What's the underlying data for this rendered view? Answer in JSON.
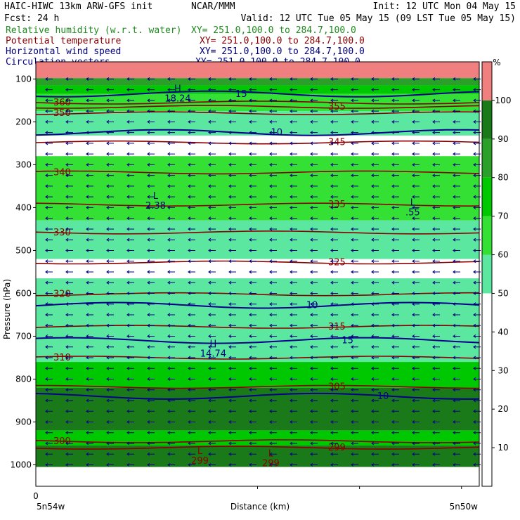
{
  "header": {
    "title_left": "HAIC-HIWC 13km ARW-GFS init",
    "title_mid": "NCAR/MMM",
    "init": "Init: 12 UTC Mon 04 May 15",
    "fcst": "Fcst:   24 h",
    "valid": "Valid: 12 UTC Tue 05 May 15 (09 LST Tue 05 May 15)"
  },
  "fields": [
    {
      "name": "Relative humidity (w.r.t. water)",
      "xy": "XY= 251.0,100.0 to 284.7,100.0",
      "color": "#1f8a1f"
    },
    {
      "name": "Potential temperature",
      "xy": "XY= 251.0,100.0 to 284.7,100.0",
      "color": "#8b0000"
    },
    {
      "name": "Horizontal wind speed",
      "xy": "XY= 251.0,100.0 to 284.7,100.0",
      "color": "#000080"
    },
    {
      "name": "Circulation vectors",
      "xy": "XY= 251.0,100.0 to 284.7,100.0",
      "color": "#000080"
    }
  ],
  "colors": {
    "rh_fill": [
      "#ffffff",
      "#ffffff",
      "#ffffff",
      "#ffffff",
      "#ffffff",
      "#5ce7a0",
      "#33e033",
      "#00c800",
      "#2aa02a",
      "#1a7a1a",
      "#f08080"
    ],
    "theta": "#8b0000",
    "wind": "#00008b",
    "vectors": "#000080"
  },
  "chart_data": {
    "type": "heatmap",
    "xlabel": "Distance (km)",
    "ylabel": "Pressure (hPa)",
    "x_start_label": "0",
    "x_left_label": "5n54w",
    "x_right_label": "5n50w",
    "ylim": [
      1050,
      60
    ],
    "yticks": [
      100,
      200,
      300,
      400,
      500,
      600,
      700,
      800,
      900,
      1000
    ],
    "colorbar": {
      "unit": "%",
      "ticks": [
        10,
        20,
        30,
        40,
        50,
        60,
        70,
        80,
        90,
        100
      ]
    },
    "rh_bands": [
      {
        "p_top": 60,
        "p_bot": 98,
        "rh": 100
      },
      {
        "p_top": 98,
        "p_bot": 115,
        "rh": 85
      },
      {
        "p_top": 115,
        "p_bot": 135,
        "rh": 75
      },
      {
        "p_top": 135,
        "p_bot": 175,
        "rh": 65
      },
      {
        "p_top": 175,
        "p_bot": 232,
        "rh": 55
      },
      {
        "p_top": 232,
        "p_bot": 280,
        "rh": 30
      },
      {
        "p_top": 280,
        "p_bot": 430,
        "rh": 65
      },
      {
        "p_top": 430,
        "p_bot": 520,
        "rh": 55
      },
      {
        "p_top": 520,
        "p_bot": 565,
        "rh": 30
      },
      {
        "p_top": 565,
        "p_bot": 760,
        "rh": 55
      },
      {
        "p_top": 760,
        "p_bot": 820,
        "rh": 75
      },
      {
        "p_top": 820,
        "p_bot": 920,
        "rh": 95
      },
      {
        "p_top": 920,
        "p_bot": 955,
        "rh": 75
      },
      {
        "p_top": 955,
        "p_bot": 1005,
        "rh": 95
      },
      {
        "p_top": 1005,
        "p_bot": 1050,
        "rh": 0
      }
    ],
    "theta_contours": [
      {
        "value": 360,
        "p": 155
      },
      {
        "value": 355,
        "p": 165
      },
      {
        "value": 350,
        "p": 180
      },
      {
        "value": 345,
        "p": 248
      },
      {
        "value": 340,
        "p": 318
      },
      {
        "value": 335,
        "p": 393
      },
      {
        "value": 330,
        "p": 458
      },
      {
        "value": 325,
        "p": 528
      },
      {
        "value": 320,
        "p": 602
      },
      {
        "value": 315,
        "p": 678
      },
      {
        "value": 310,
        "p": 750
      },
      {
        "value": 305,
        "p": 818
      },
      {
        "value": 300,
        "p": 945
      },
      {
        "value": 299,
        "p": 960
      }
    ],
    "wind_contours": [
      {
        "value": 15,
        "p": 135
      },
      {
        "value": 10,
        "p": 225
      },
      {
        "value": 10,
        "p": 628
      },
      {
        "value": 15,
        "p": 710
      },
      {
        "value": 10,
        "p": 840
      }
    ],
    "extrema": [
      {
        "kind": "H",
        "value": "18.24",
        "x": 0.32,
        "p": 130
      },
      {
        "kind": "L",
        "value": "2.38",
        "x": 0.27,
        "p": 380
      },
      {
        "kind": "L",
        "value": ".55",
        "x": 0.85,
        "p": 395
      },
      {
        "kind": "H",
        "value": "14.74",
        "x": 0.4,
        "p": 725
      },
      {
        "kind": "L",
        "value": "299",
        "x": 0.37,
        "p": 975
      },
      {
        "kind": "L",
        "value": "299",
        "x": 0.53,
        "p": 980
      }
    ]
  }
}
